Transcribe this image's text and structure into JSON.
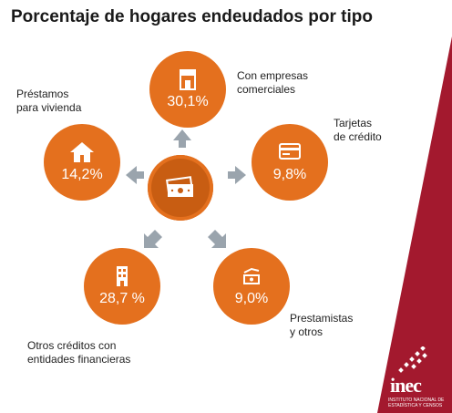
{
  "title": "Porcentaje de hogares endeudados por tipo",
  "nodes": [
    {
      "id": "empresas",
      "value": "30,1%",
      "label": "Con empresas\ncomerciales",
      "icon": "store-icon"
    },
    {
      "id": "tarjetas",
      "value": "9,8%",
      "label": "Tarjetas\nde crédito",
      "icon": "credit-card-icon"
    },
    {
      "id": "prestamistas",
      "value": "9,0%",
      "label": "Prestamistas\ny otros",
      "icon": "hand-money-icon"
    },
    {
      "id": "financieras",
      "value": "28,7 %",
      "label": "Otros créditos con\nentidades financieras",
      "icon": "building-icon"
    },
    {
      "id": "vivienda",
      "value": "14,2%",
      "label": "Préstamos\npara vivienda",
      "icon": "house-icon"
    }
  ],
  "center_icon": "banknote-icon",
  "logo": {
    "name": "inec",
    "subtitle1": "INSTITUTO NACIONAL DE",
    "subtitle2": "ESTADÍSTICA Y CENSOS"
  },
  "colors": {
    "accent": "#e4701e",
    "accent_dark": "#c85d12",
    "arrow": "#9aa4ad",
    "brand": "#a3192e"
  }
}
